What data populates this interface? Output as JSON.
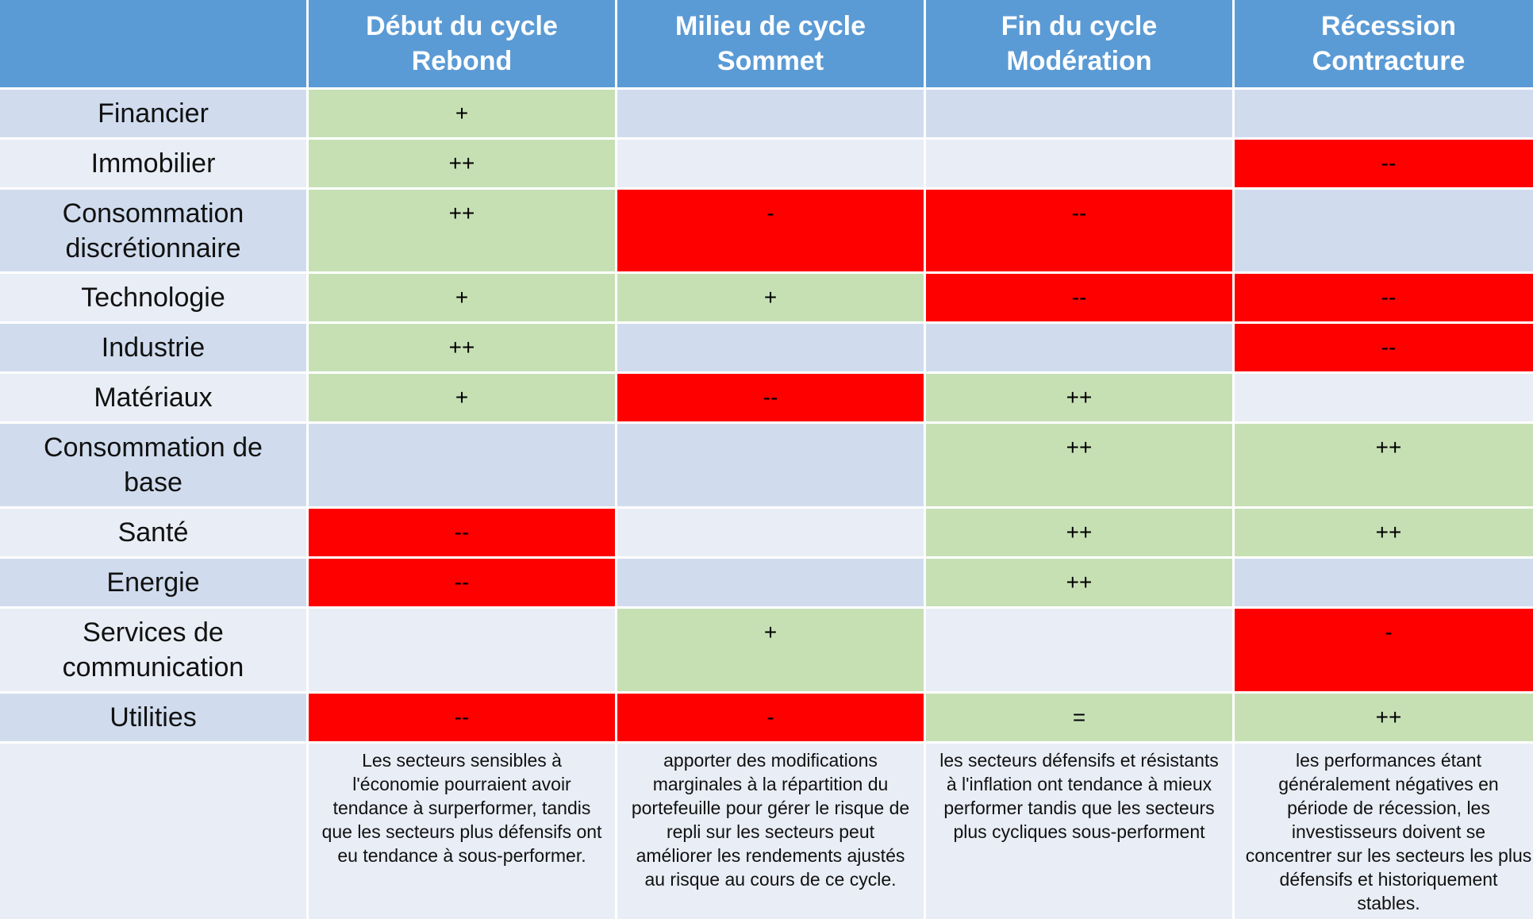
{
  "header": {
    "col1": {
      "line1": "Début du cycle",
      "line2": "Rebond"
    },
    "col2": {
      "line1": "Milieu de cycle",
      "line2": "Sommet"
    },
    "col3": {
      "line1": "Fin du cycle",
      "line2": "Modération"
    },
    "col4": {
      "line1": "Récession",
      "line2": "Contracture"
    }
  },
  "rows": [
    {
      "label": [
        "Financier"
      ],
      "values": [
        "+",
        "",
        "",
        ""
      ]
    },
    {
      "label": [
        "Immobilier"
      ],
      "values": [
        "++",
        "",
        "",
        "--"
      ]
    },
    {
      "label": [
        "Consommation",
        "discrétionnaire"
      ],
      "values": [
        "++",
        "-",
        "--",
        ""
      ]
    },
    {
      "label": [
        "Technologie"
      ],
      "values": [
        "+",
        "+",
        "--",
        "--"
      ]
    },
    {
      "label": [
        "Industrie"
      ],
      "values": [
        "++",
        "",
        "",
        "--"
      ]
    },
    {
      "label": [
        "Matériaux"
      ],
      "values": [
        "+",
        "--",
        "++",
        ""
      ]
    },
    {
      "label": [
        "Consommation de",
        "base"
      ],
      "values": [
        "",
        "",
        "++",
        "++"
      ]
    },
    {
      "label": [
        "Santé"
      ],
      "values": [
        "--",
        "",
        "++",
        "++"
      ]
    },
    {
      "label": [
        "Energie"
      ],
      "values": [
        "--",
        "",
        "++",
        ""
      ]
    },
    {
      "label": [
        "Services de",
        "communication"
      ],
      "values": [
        "",
        "+",
        "",
        "-"
      ]
    },
    {
      "label": [
        "Utilities"
      ],
      "values": [
        "--",
        "-",
        "=",
        "++"
      ]
    }
  ],
  "colors": {
    "header_bg": "#5b9bd5",
    "row_even_bg": "#d0dcee",
    "row_odd_bg": "#e9edf5",
    "positive_bg": "#c6e0b4",
    "negative_bg": "#ff0000"
  },
  "notes": [
    [
      "Les secteurs sensibles à",
      "l'économie pourraient avoir",
      "tendance à surperformer, tandis",
      "que les secteurs plus défensifs ont",
      "eu tendance à sous-performer."
    ],
    [
      "apporter des modifications",
      "marginales à la répartition du",
      "portefeuille pour gérer le risque de",
      "repli sur les secteurs peut",
      "améliorer les rendements ajustés",
      "au risque au cours de ce cycle."
    ],
    [
      "les secteurs défensifs et résistants",
      "à l'inflation ont tendance à mieux",
      "performer tandis que les secteurs",
      "plus cycliques sous-performent"
    ],
    [
      "les performances étant",
      "généralement négatives en",
      "période de récession, les",
      "investisseurs doivent se",
      "concentrer sur les secteurs les plus",
      "défensifs et historiquement",
      "stables."
    ]
  ]
}
